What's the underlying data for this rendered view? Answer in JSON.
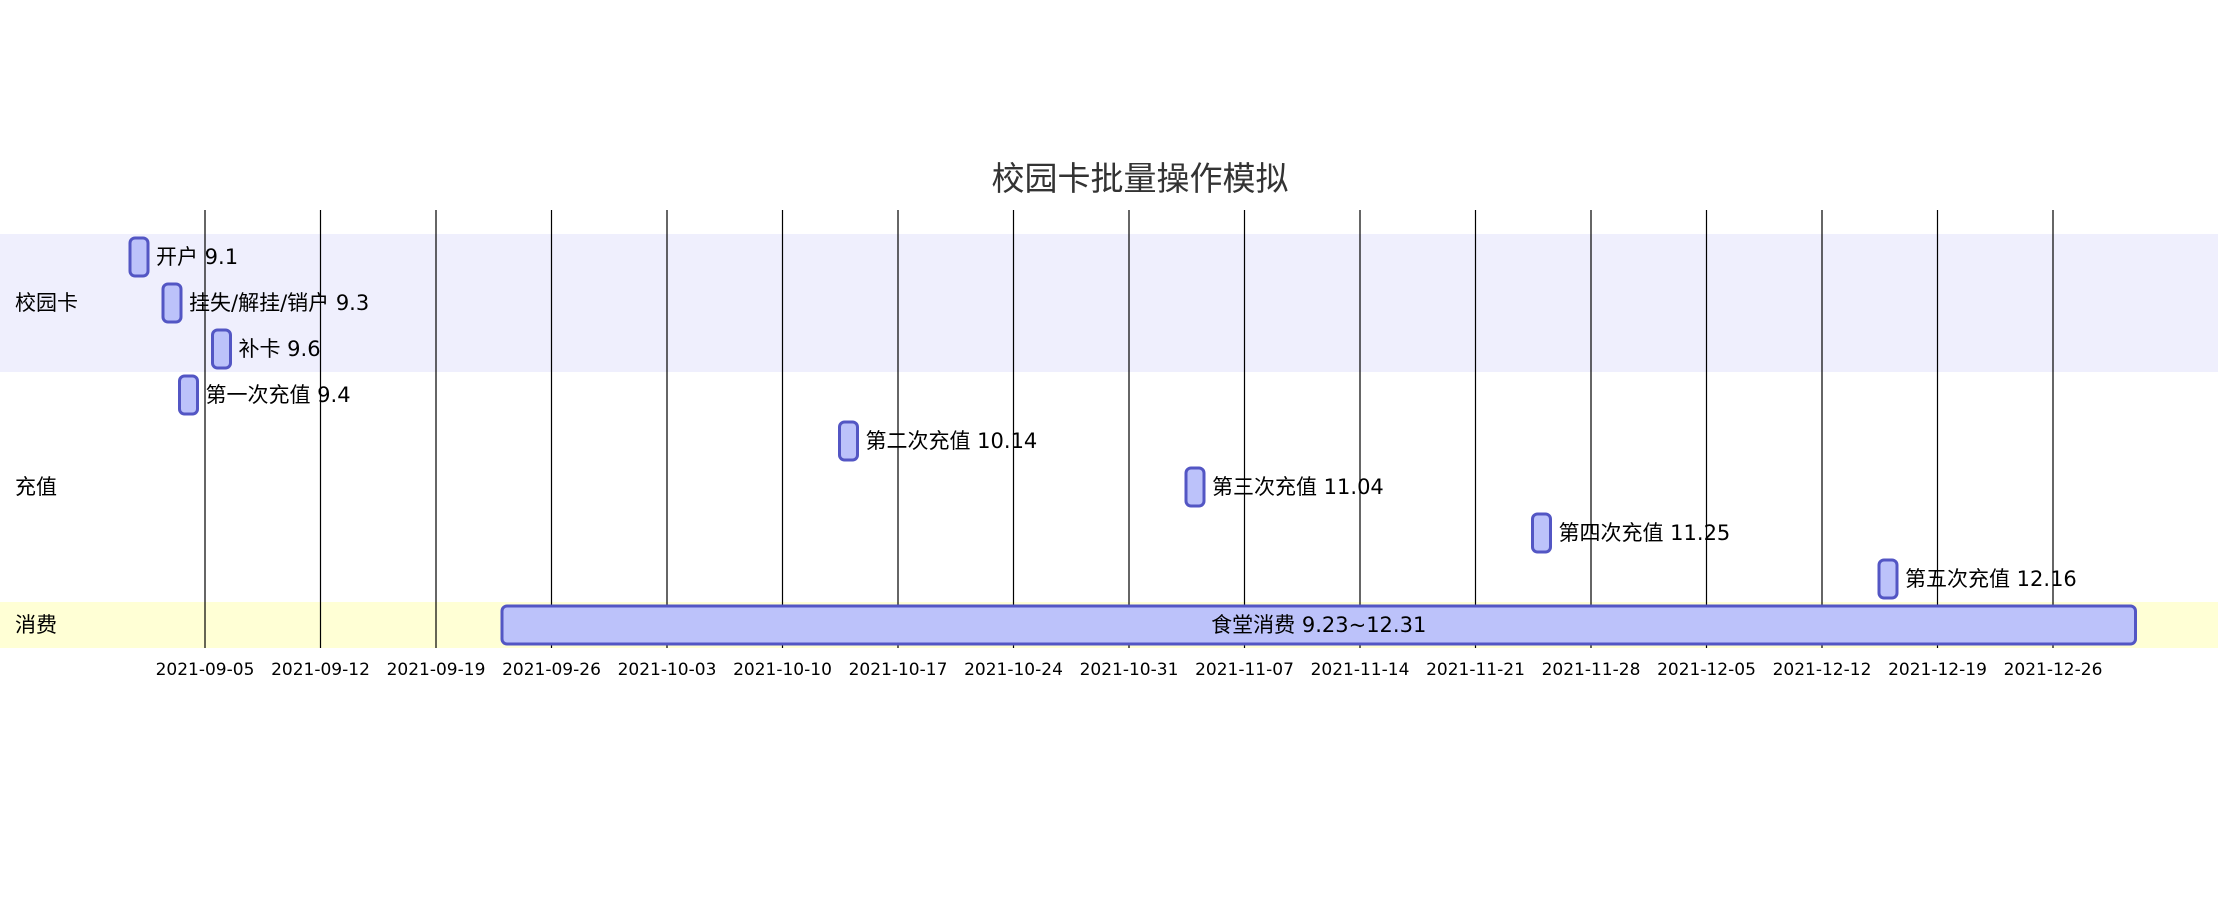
{
  "chart_data": {
    "type": "gantt",
    "title": "校园卡批量操作模拟",
    "x_range": [
      "2021-08-29",
      "2022-01-05"
    ],
    "x_ticks": [
      "2021-09-05",
      "2021-09-12",
      "2021-09-19",
      "2021-09-26",
      "2021-10-03",
      "2021-10-10",
      "2021-10-17",
      "2021-10-24",
      "2021-10-31",
      "2021-11-07",
      "2021-11-14",
      "2021-11-21",
      "2021-11-28",
      "2021-12-05",
      "2021-12-12",
      "2021-12-19",
      "2021-12-26"
    ],
    "sections": [
      {
        "name": "校园卡",
        "color": "#EFEFFD",
        "tasks": [
          {
            "label": "开户 9.1",
            "start": "2021-09-01",
            "end": "2021-09-01"
          },
          {
            "label": "挂失/解挂/销户 9.3",
            "start": "2021-09-03",
            "end": "2021-09-03"
          },
          {
            "label": "补卡 9.6",
            "start": "2021-09-06",
            "end": "2021-09-06"
          }
        ]
      },
      {
        "name": "充值",
        "color": "#FFFFFF",
        "tasks": [
          {
            "label": "第一次充值 9.4",
            "start": "2021-09-04",
            "end": "2021-09-04"
          },
          {
            "label": "第二次充值 10.14",
            "start": "2021-10-14",
            "end": "2021-10-14"
          },
          {
            "label": "第三次充值 11.04",
            "start": "2021-11-04",
            "end": "2021-11-04"
          },
          {
            "label": "第四次充值 11.25",
            "start": "2021-11-25",
            "end": "2021-11-25"
          },
          {
            "label": "第五次充值 12.16",
            "start": "2021-12-16",
            "end": "2021-12-16"
          }
        ]
      },
      {
        "name": "消费",
        "color": "#FFFFD5",
        "tasks": [
          {
            "label": "食堂消费 9.23~12.31",
            "start": "2021-09-23",
            "end": "2021-12-31"
          }
        ]
      }
    ],
    "grid": true
  }
}
